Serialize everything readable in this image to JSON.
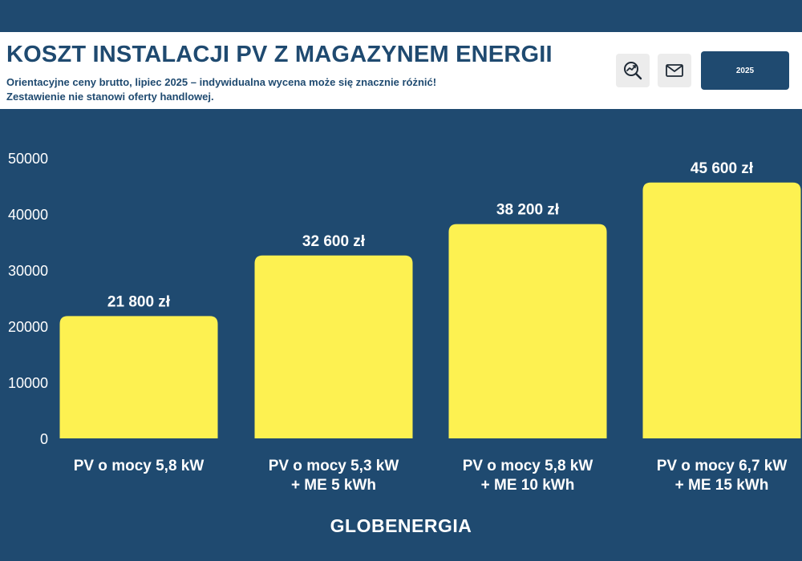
{
  "header": {
    "title": "KOSZT INSTALACJI PV Z MAGAZYNEM ENERGII",
    "subtitle_line1": "Orientacyjne ceny brutto, lipiec 2025 – indywidualna wycena może się znacznie różnić!",
    "subtitle_line2": "Zestawienie nie stanowi oferty handlowej.",
    "year_button": "2025"
  },
  "icons": {
    "search": "search-analytics-icon",
    "mail": "mail-icon"
  },
  "colors": {
    "background": "#1f4a70",
    "bar": "#fdf151",
    "header_bg": "#ffffff",
    "text": "#ffffff"
  },
  "brand": "GLOBENERGIA",
  "chart_data": {
    "type": "bar",
    "categories": [
      [
        "PV o mocy 5,8 kW"
      ],
      [
        "PV o mocy 5,3 kW",
        "+ ME 5 kWh"
      ],
      [
        "PV o mocy 5,8 kW",
        "+ ME 10 kWh"
      ],
      [
        "PV o mocy 6,7 kW",
        "+ ME 15 kWh"
      ]
    ],
    "values": [
      21800,
      32600,
      38200,
      45600
    ],
    "data_labels": [
      "21 800 zł",
      "32 600 zł",
      "38 200 zł",
      "45 600 zł"
    ],
    "yticks": [
      0,
      10000,
      20000,
      30000,
      40000,
      50000
    ],
    "ylim": [
      0,
      50000
    ],
    "grid": false,
    "legend": "none"
  }
}
